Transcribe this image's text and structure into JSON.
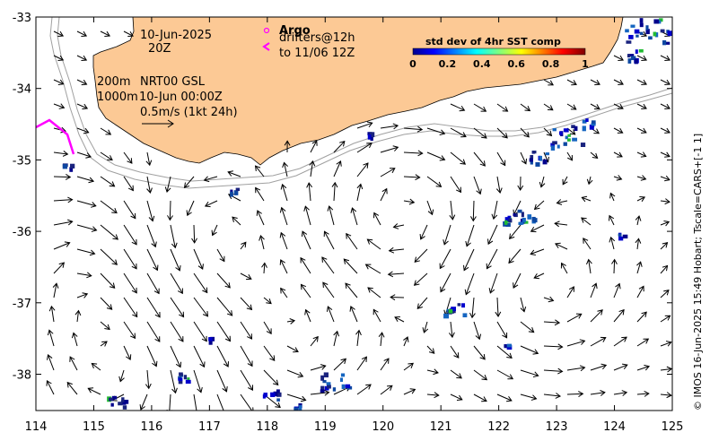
{
  "map": {
    "x_ticks": [
      "114",
      "115",
      "116",
      "117",
      "118",
      "119",
      "120",
      "121",
      "122",
      "123",
      "124",
      "125"
    ],
    "y_ticks": [
      "-33",
      "-34",
      "-35",
      "-36",
      "-37",
      "-38"
    ],
    "lon_range": [
      114,
      125
    ],
    "lat_range": [
      -38.5,
      -33
    ]
  },
  "annotations": {
    "date": "10-Jun-2025",
    "time": "20Z",
    "argo_label": "Argo",
    "drifters": "drifters@12h",
    "drifters_to": "to 11/06 12Z",
    "depth_200": "200m",
    "product": "NRT00 GSL",
    "depth_1000": "1000m",
    "analysis_time": "10-Jun 00:00Z",
    "scale_label": "0.5m/s (1kt 24h)"
  },
  "colorbar": {
    "title": "std dev of 4hr SST comp",
    "ticks": [
      "0",
      "0.2",
      "0.4",
      "0.6",
      "0.8",
      "1"
    ]
  },
  "credit": "© IMOS 16-Jun-2025 15:49 Hobart; Tscale=CARS+[-1 1]",
  "colors": {
    "land": "#fcc995",
    "argo": "#ff00ff",
    "isobath": "#a0a0a0",
    "sst_low": "#1a237e"
  }
}
